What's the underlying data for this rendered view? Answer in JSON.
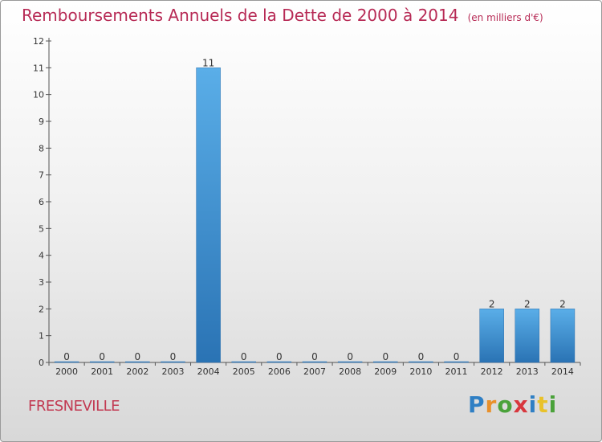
{
  "chart_data": {
    "type": "bar",
    "title": "Remboursements Annuels de la Dette de 2000 à 2014",
    "subtitle": "(en milliers d'€)",
    "categories": [
      "2000",
      "2001",
      "2002",
      "2003",
      "2004",
      "2005",
      "2006",
      "2007",
      "2008",
      "2009",
      "2010",
      "2011",
      "2012",
      "2013",
      "2014"
    ],
    "values": [
      0,
      0,
      0,
      0,
      11,
      0,
      0,
      0,
      0,
      0,
      0,
      0,
      2,
      2,
      2
    ],
    "data_labels": [
      "0",
      "0",
      "0",
      "0",
      "11",
      "0",
      "0",
      "0",
      "0",
      "0",
      "0",
      "0",
      "2",
      "2",
      "2"
    ],
    "ylim": [
      0,
      12
    ],
    "yticks": [
      "0",
      "1",
      "2",
      "3",
      "4",
      "5",
      "6",
      "7",
      "8",
      "9",
      "10",
      "11",
      "12"
    ],
    "grid": false,
    "colors": {
      "bar_top": "#5aaee8",
      "bar_bottom": "#2a73b4"
    }
  },
  "commune": "FRESNEVILLE",
  "logo": {
    "letters": [
      "P",
      "r",
      "o",
      "x",
      "i",
      "t",
      "i"
    ],
    "colors": [
      "#2f7fc4",
      "#e9902a",
      "#4aa23a",
      "#d8373d",
      "#2f7fc4",
      "#e9c22a",
      "#4aa23a"
    ]
  }
}
